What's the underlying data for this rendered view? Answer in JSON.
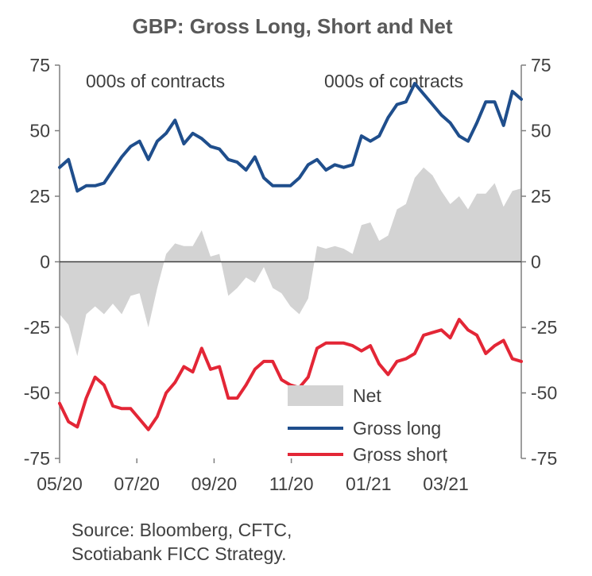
{
  "chart_data": {
    "type": "line",
    "title": "GBP: Gross Long, Short and Net",
    "ylabel_left": "000s of contracts",
    "ylabel_right": "000s of contracts",
    "ylim": [
      -75,
      75
    ],
    "y_ticks": [
      "75",
      "50",
      "25",
      "0",
      "-25",
      "-50",
      "-75"
    ],
    "y_tick_values": [
      75,
      50,
      25,
      0,
      -25,
      -50,
      -75
    ],
    "x_ticks": [
      "05/20",
      "07/20",
      "09/20",
      "11/20",
      "01/21",
      "03/21"
    ],
    "x_range": [
      0,
      52
    ],
    "x_tick_values": [
      0,
      8.7,
      17.4,
      26.1,
      34.8,
      43.5
    ],
    "legend_position": "bottom-right",
    "series": [
      {
        "name": "Net",
        "style": "area",
        "color": "#d3d3d3",
        "values": [
          -20,
          -24,
          -36,
          -20,
          -17,
          -20,
          -16,
          -20,
          -13,
          -12,
          -25,
          -10,
          3,
          7,
          6,
          6,
          12,
          2,
          3,
          -13,
          -10,
          -6,
          -8,
          -2,
          -10,
          -12,
          -17,
          -20,
          -14,
          6,
          5,
          6,
          5,
          3,
          14,
          15,
          8,
          10,
          20,
          22,
          32,
          36,
          33,
          27,
          22,
          25,
          20,
          26,
          26,
          30,
          21,
          27,
          28
        ]
      },
      {
        "name": "Gross long",
        "style": "line",
        "color": "#1f4e8c",
        "values": [
          36,
          39,
          27,
          29,
          29,
          30,
          35,
          40,
          44,
          46,
          39,
          46,
          49,
          54,
          45,
          49,
          47,
          44,
          43,
          39,
          38,
          35,
          40,
          32,
          29,
          29,
          29,
          32,
          37,
          39,
          35,
          37,
          36,
          37,
          48,
          46,
          48,
          55,
          60,
          61,
          68,
          64,
          60,
          56,
          53,
          48,
          46,
          53,
          61,
          61,
          52,
          65,
          62
        ]
      },
      {
        "name": "Gross short",
        "style": "line",
        "color": "#e32636",
        "values": [
          -54,
          -61,
          -63,
          -52,
          -44,
          -47,
          -55,
          -56,
          -56,
          -60,
          -64,
          -59,
          -50,
          -46,
          -40,
          -42,
          -33,
          -41,
          -40,
          -52,
          -52,
          -47,
          -41,
          -38,
          -38,
          -45,
          -47,
          -48,
          -44,
          -33,
          -31,
          -31,
          -31,
          -32,
          -34,
          -32,
          -39,
          -43,
          -38,
          -37,
          -35,
          -28,
          -27,
          -26,
          -29,
          -22,
          -26,
          -28,
          -35,
          -32,
          -30,
          -37,
          -38
        ]
      }
    ]
  },
  "source": [
    "Source: Bloomberg, CFTC,",
    "Scotiabank FICC  Strategy."
  ]
}
